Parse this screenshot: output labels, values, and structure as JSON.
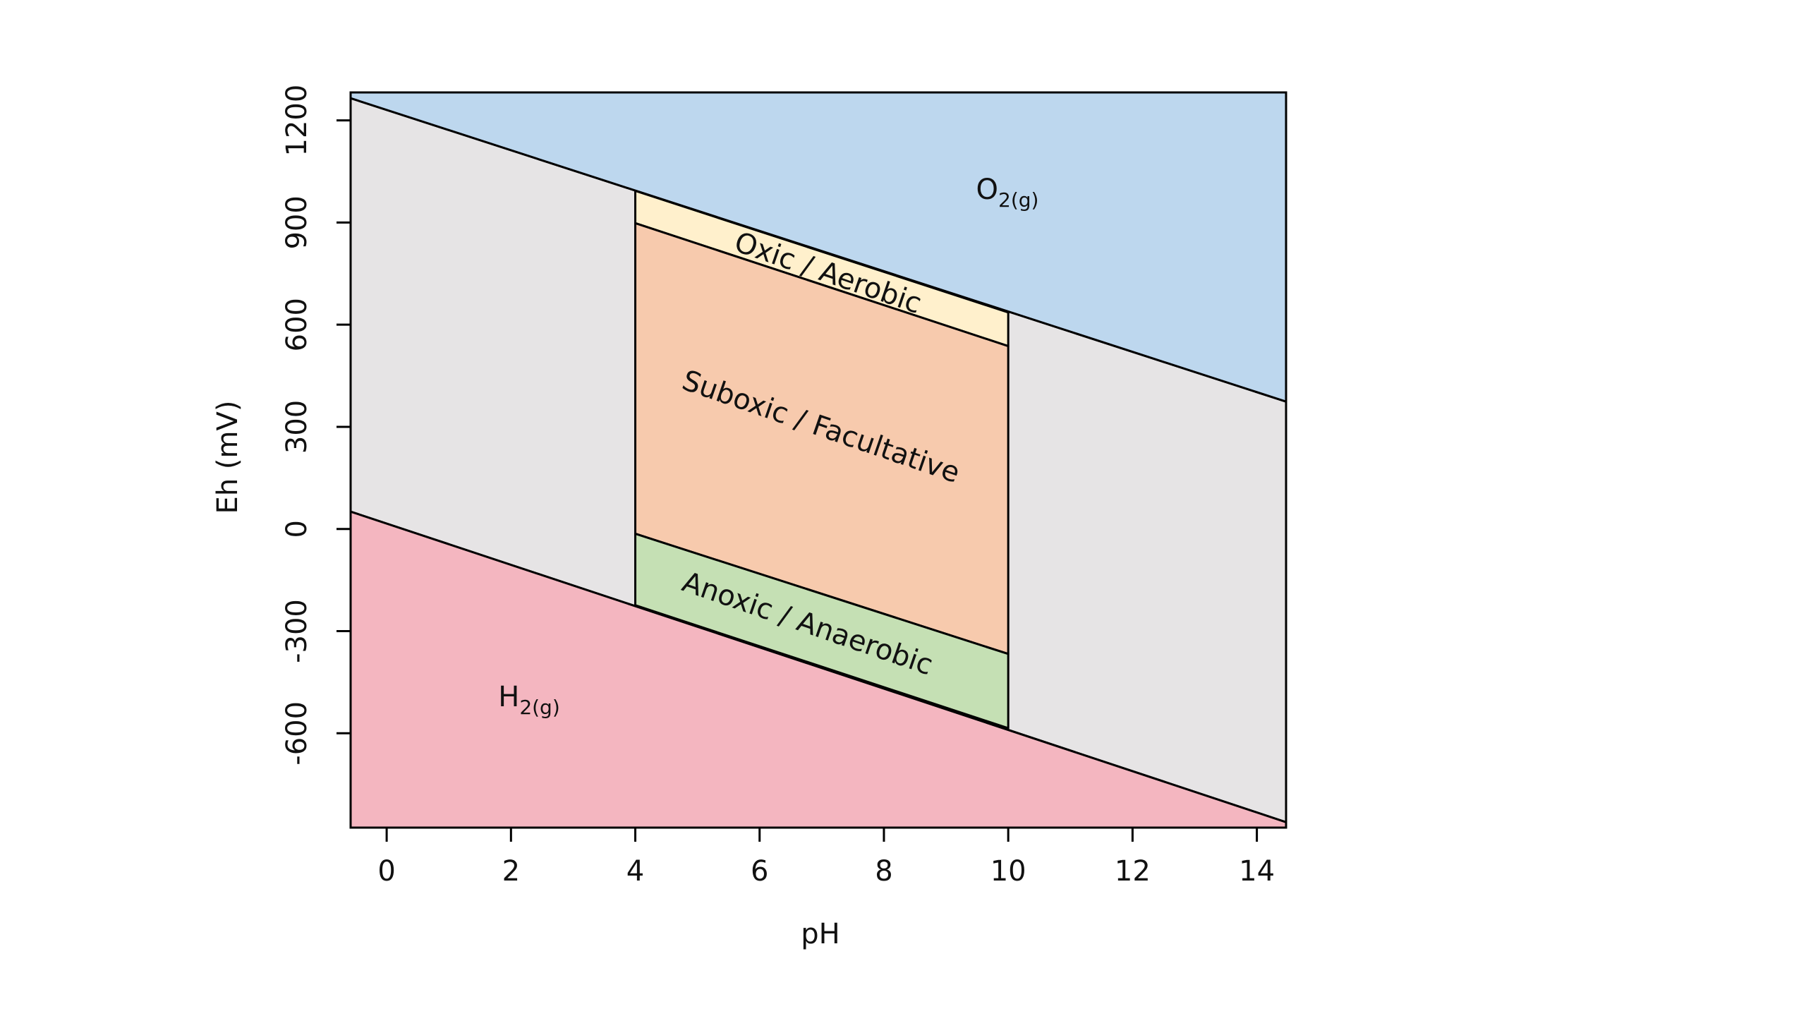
{
  "chart_data": {
    "type": "region",
    "x_label": "pH",
    "y_label": "Eh (mV)",
    "xlim": [
      -0.58,
      14.47
    ],
    "ylim": [
      -877,
      1282
    ],
    "xticks": [
      0,
      2,
      4,
      6,
      8,
      10,
      12,
      14
    ],
    "yticks": [
      -600,
      -300,
      0,
      300,
      600,
      900,
      1200
    ],
    "regions": [
      {
        "label": "O",
        "subscript": "2(g)",
        "color": "#bdd7ee",
        "x": [
          -0.58,
          14.47,
          14.47,
          -0.58
        ],
        "y": [
          1282,
          1282,
          374,
          1265
        ]
      },
      {
        "label": "H",
        "subscript": "2(g)",
        "color": "#f4b6c0",
        "x": [
          -0.58,
          14.47,
          14.47,
          -0.58
        ],
        "y": [
          51,
          -861,
          -877,
          -877
        ]
      },
      {
        "color": "#e6e4e5",
        "x": [
          -0.58,
          14.47,
          14.47,
          -0.58
        ],
        "y": [
          1265,
          374,
          -861,
          51
        ]
      },
      {
        "label": "Oxic / Aerobic",
        "color": "#fff0cc",
        "x": [
          4,
          10,
          10,
          4
        ],
        "y": [
          993,
          636,
          537,
          898
        ]
      },
      {
        "label": "Suboxic / Facultative",
        "color": "#f7caad",
        "x": [
          4,
          10,
          10,
          4
        ],
        "y": [
          898,
          537,
          -367,
          -14
        ]
      },
      {
        "label": "Anoxic / Anaerobic",
        "color": "#c5e0b4",
        "x": [
          4,
          10,
          10,
          4
        ],
        "y": [
          -14,
          -367,
          -585,
          -224
        ]
      }
    ]
  }
}
